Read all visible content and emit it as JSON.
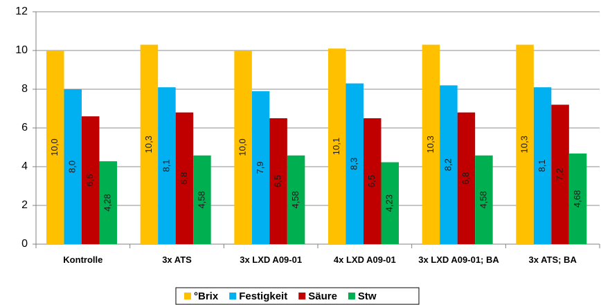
{
  "chart_data": {
    "type": "bar",
    "categories": [
      "Kontrolle",
      "3x ATS",
      "3x LXD A09-01",
      "4x LXD A09-01",
      "3x LXD A09-01; BA",
      "3x ATS; BA"
    ],
    "series": [
      {
        "name": "°Brix",
        "color": "#ffc000",
        "values": [
          10.0,
          10.3,
          10.0,
          10.1,
          10.3,
          10.3
        ],
        "value_labels": [
          "10,0",
          "10,3",
          "10,0",
          "10,1",
          "10,3",
          "10,3"
        ]
      },
      {
        "name": "Festigkeit",
        "color": "#00b0f0",
        "values": [
          8.0,
          8.1,
          7.9,
          8.3,
          8.2,
          8.1
        ],
        "value_labels": [
          "8,0",
          "8,1",
          "7,9",
          "8,3",
          "8,2",
          "8,1"
        ]
      },
      {
        "name": "Säure",
        "color": "#c00000",
        "values": [
          6.6,
          6.8,
          6.5,
          6.5,
          6.8,
          7.2
        ],
        "value_labels": [
          "6,6",
          "6,8",
          "6,5",
          "6,5",
          "6,8",
          "7,2"
        ]
      },
      {
        "name": "Stw",
        "color": "#00b050",
        "values": [
          4.28,
          4.58,
          4.58,
          4.23,
          4.58,
          4.68
        ],
        "value_labels": [
          "4,28",
          "4,58",
          "4,58",
          "4,23",
          "4,58",
          "4,68"
        ]
      }
    ],
    "ylim": [
      0,
      12
    ],
    "yticks": [
      0,
      2,
      4,
      6,
      8,
      10,
      12
    ],
    "grid": true,
    "legend": "bottom"
  }
}
